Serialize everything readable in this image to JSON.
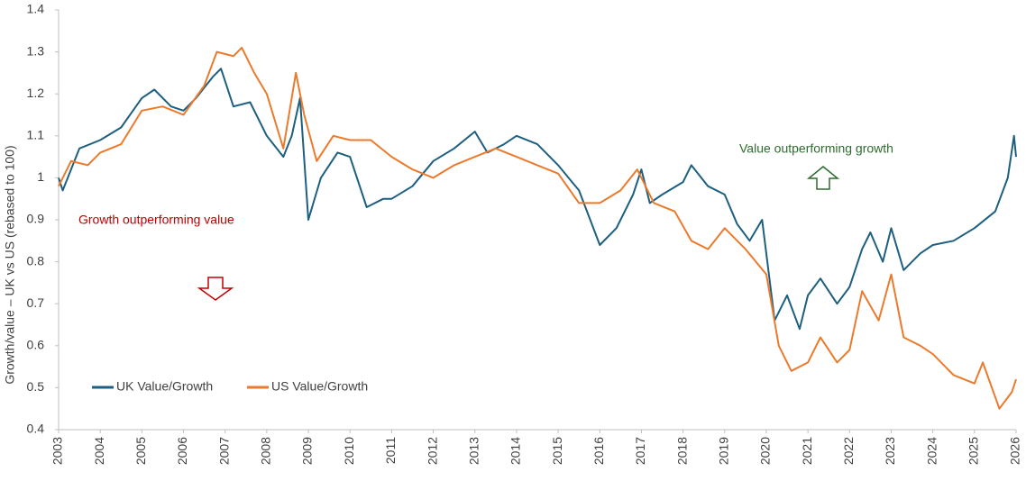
{
  "chart_data": {
    "type": "line",
    "y_label": "Growth/value – UK vs US (rebased to 100)",
    "annotations": [
      "Growth outperforming value",
      "Value outperforming growth"
    ],
    "xlim": [
      2003,
      2026
    ],
    "xticks": [
      2003,
      2004,
      2005,
      2006,
      2007,
      2008,
      2009,
      2010,
      2011,
      2012,
      2013,
      2014,
      2015,
      2016,
      2017,
      2018,
      2019,
      2020,
      2021,
      2022,
      2023,
      2024,
      2025,
      2026
    ],
    "ylim": [
      0.4,
      1.4
    ],
    "yticks": [
      0.4,
      0.5,
      0.6,
      0.7,
      0.8,
      0.9,
      1,
      1.1,
      1.2,
      1.3,
      1.4
    ],
    "grid": false,
    "series": [
      {
        "name": "UK Value/Growth",
        "color": "#1d5f80",
        "x": [
          2003.0,
          2003.1,
          2003.5,
          2004.0,
          2004.5,
          2005.0,
          2005.3,
          2005.7,
          2006.0,
          2006.3,
          2006.7,
          2006.9,
          2007.2,
          2007.6,
          2008.0,
          2008.4,
          2008.6,
          2008.8,
          2009.0,
          2009.3,
          2009.7,
          2010.0,
          2010.4,
          2010.8,
          2011.0,
          2011.5,
          2012.0,
          2012.5,
          2013.0,
          2013.3,
          2013.7,
          2014.0,
          2014.5,
          2015.0,
          2015.5,
          2016.0,
          2016.4,
          2016.8,
          2017.0,
          2017.2,
          2017.5,
          2018.0,
          2018.2,
          2018.6,
          2019.0,
          2019.3,
          2019.6,
          2019.9,
          2020.2,
          2020.5,
          2020.8,
          2021.0,
          2021.3,
          2021.7,
          2022.0,
          2022.3,
          2022.5,
          2022.8,
          2023.0,
          2023.3,
          2023.7,
          2024.0,
          2024.5,
          2025.0,
          2025.5,
          2025.8,
          2025.95,
          2026.0
        ],
        "values": [
          1.0,
          0.97,
          1.07,
          1.09,
          1.12,
          1.19,
          1.21,
          1.17,
          1.16,
          1.19,
          1.24,
          1.26,
          1.17,
          1.18,
          1.1,
          1.05,
          1.1,
          1.19,
          0.9,
          1.0,
          1.06,
          1.05,
          0.93,
          0.95,
          0.95,
          0.98,
          1.04,
          1.07,
          1.11,
          1.06,
          1.08,
          1.1,
          1.08,
          1.03,
          0.97,
          0.84,
          0.88,
          0.96,
          1.02,
          0.94,
          0.96,
          0.99,
          1.03,
          0.98,
          0.96,
          0.89,
          0.85,
          0.9,
          0.66,
          0.72,
          0.64,
          0.72,
          0.76,
          0.7,
          0.74,
          0.83,
          0.87,
          0.8,
          0.88,
          0.78,
          0.82,
          0.84,
          0.85,
          0.88,
          0.92,
          1.0,
          1.1,
          1.05
        ]
      },
      {
        "name": "US Value/Growth",
        "color": "#ec7a2c",
        "x": [
          2003.0,
          2003.3,
          2003.7,
          2004.0,
          2004.5,
          2005.0,
          2005.5,
          2006.0,
          2006.5,
          2006.8,
          2007.2,
          2007.4,
          2007.7,
          2008.0,
          2008.4,
          2008.7,
          2008.9,
          2009.2,
          2009.6,
          2010.0,
          2010.5,
          2011.0,
          2011.5,
          2012.0,
          2012.5,
          2013.0,
          2013.5,
          2014.0,
          2014.5,
          2015.0,
          2015.5,
          2016.0,
          2016.5,
          2016.9,
          2017.3,
          2017.8,
          2018.2,
          2018.6,
          2019.0,
          2019.5,
          2020.0,
          2020.3,
          2020.6,
          2021.0,
          2021.3,
          2021.7,
          2022.0,
          2022.3,
          2022.7,
          2023.0,
          2023.3,
          2023.7,
          2024.0,
          2024.5,
          2025.0,
          2025.2,
          2025.6,
          2025.9,
          2026.0
        ],
        "values": [
          0.98,
          1.04,
          1.03,
          1.06,
          1.08,
          1.16,
          1.17,
          1.15,
          1.22,
          1.3,
          1.29,
          1.31,
          1.25,
          1.2,
          1.07,
          1.25,
          1.15,
          1.04,
          1.1,
          1.09,
          1.09,
          1.05,
          1.02,
          1.0,
          1.03,
          1.05,
          1.07,
          1.05,
          1.03,
          1.01,
          0.94,
          0.94,
          0.97,
          1.02,
          0.94,
          0.92,
          0.85,
          0.83,
          0.88,
          0.83,
          0.77,
          0.6,
          0.54,
          0.56,
          0.62,
          0.56,
          0.59,
          0.73,
          0.66,
          0.77,
          0.62,
          0.6,
          0.58,
          0.53,
          0.51,
          0.56,
          0.45,
          0.49,
          0.52
        ]
      }
    ]
  }
}
